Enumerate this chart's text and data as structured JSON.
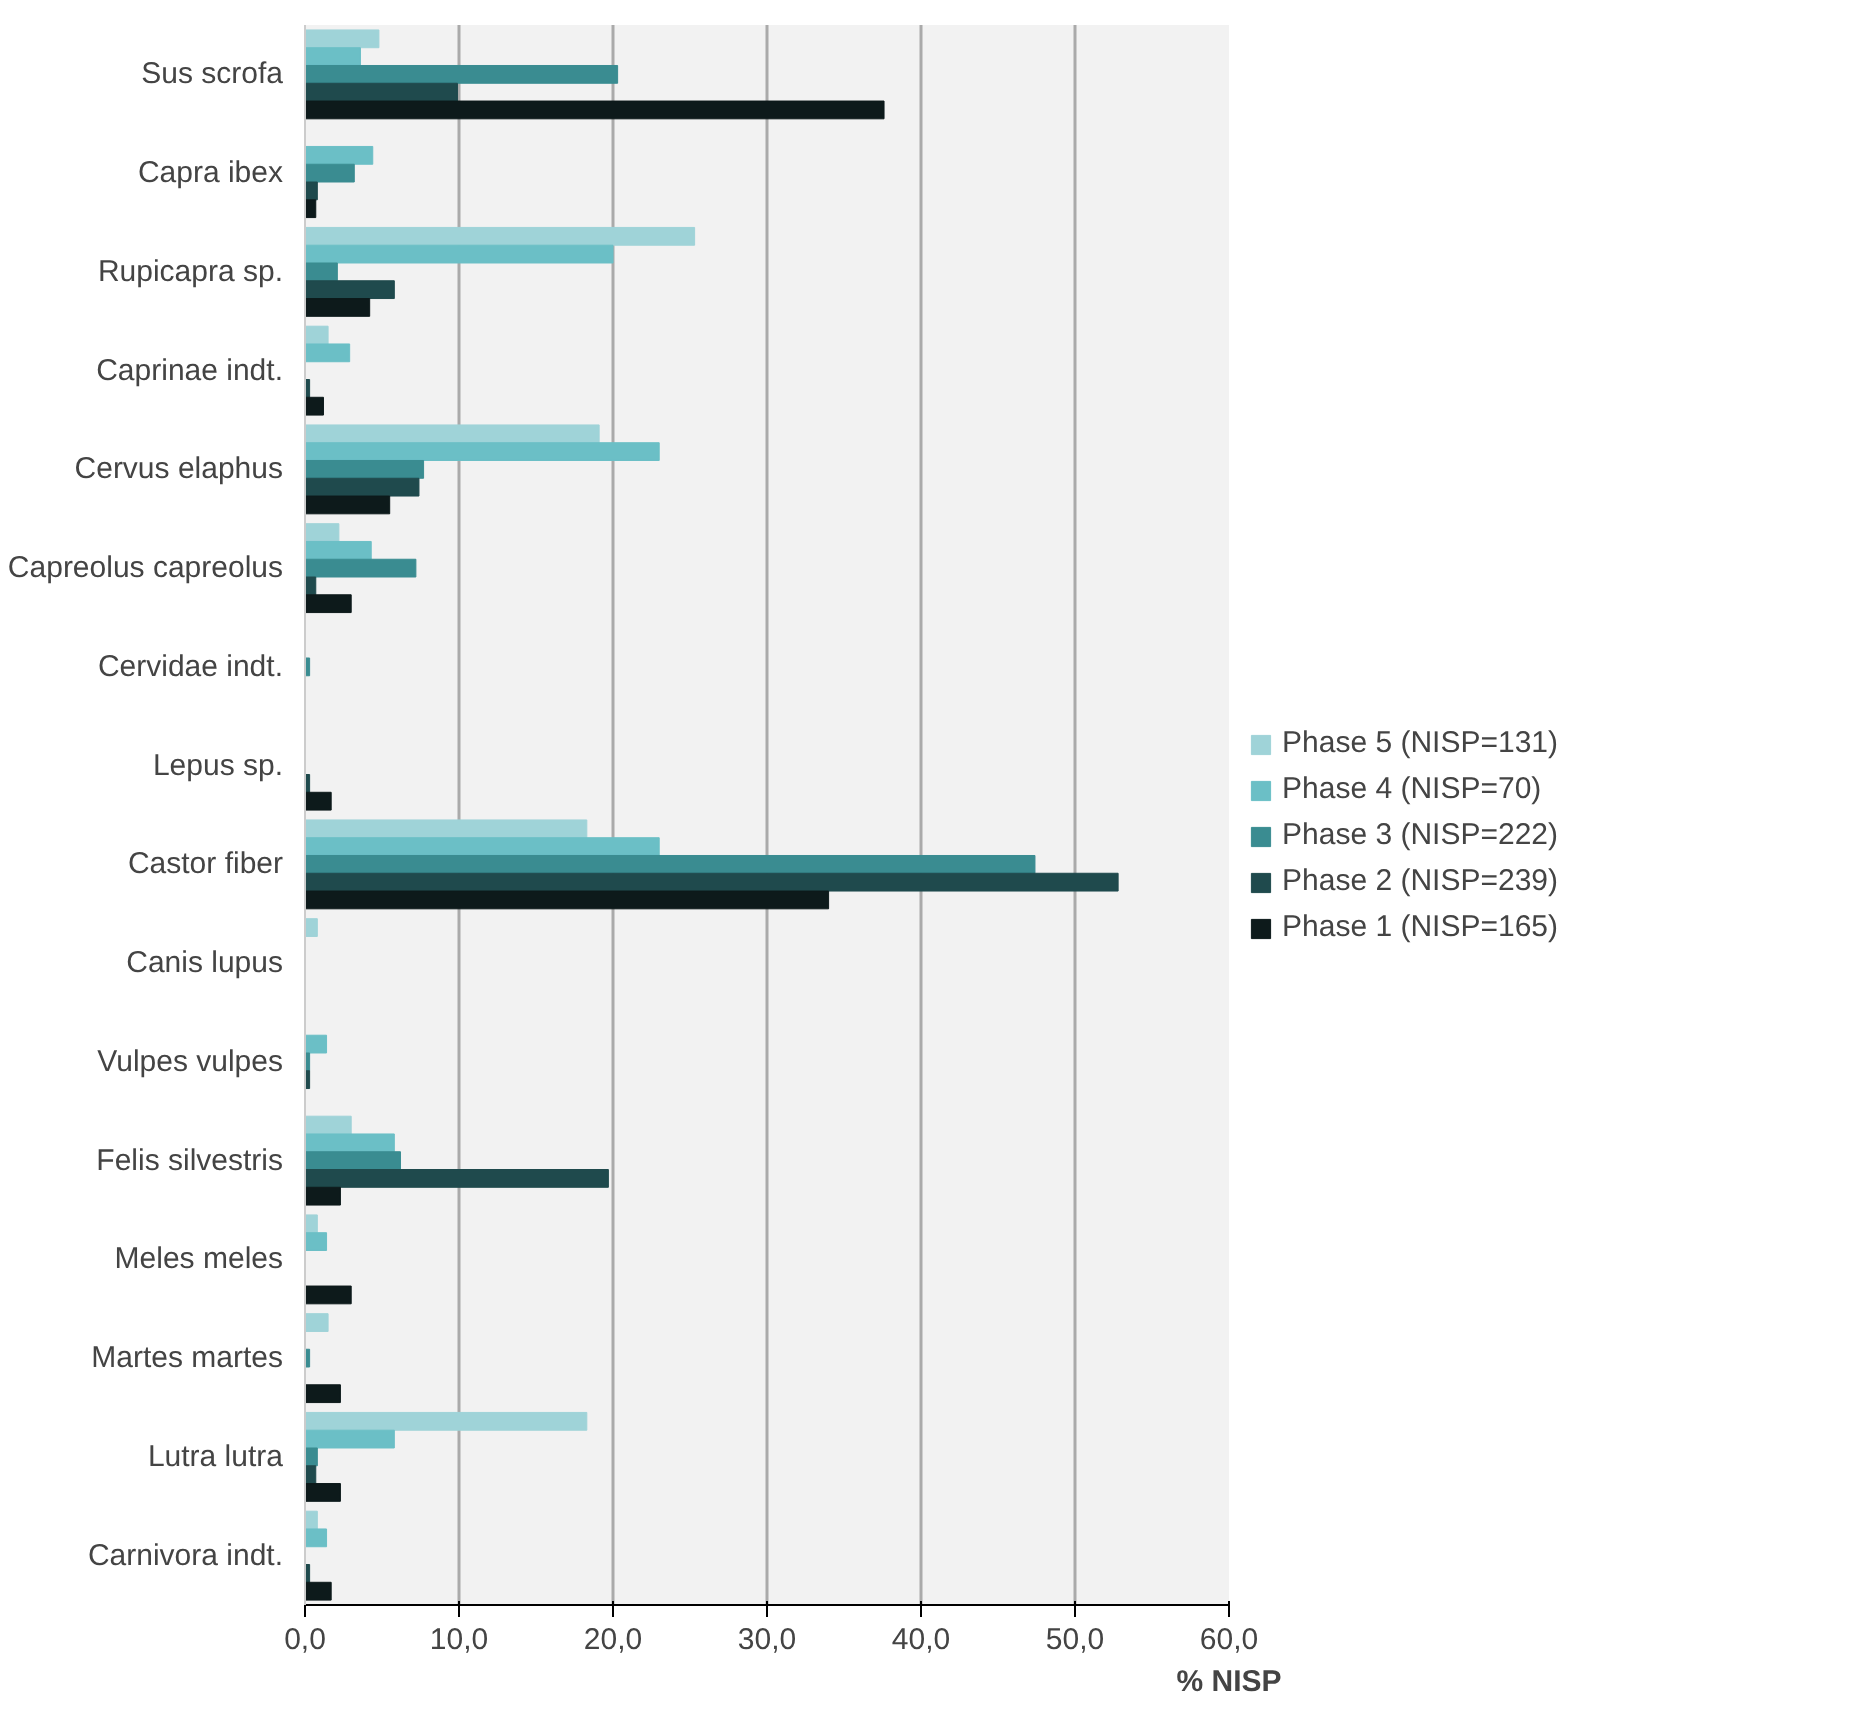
{
  "chart_data": {
    "type": "bar",
    "orientation": "horizontal",
    "xlabel": "% NISP",
    "categories": [
      "Sus scrofa",
      "Capra ibex",
      "Rupicapra sp.",
      "Caprinae indt.",
      "Cervus elaphus",
      "Capreolus capreolus",
      "Cervidae indt.",
      "Lepus sp.",
      "Castor fiber",
      "Canis lupus",
      "Vulpes vulpes",
      "Felis silvestris",
      "Meles meles",
      "Martes martes",
      "Lutra lutra",
      "Carnivora indt."
    ],
    "series": [
      {
        "name": "Phase 5 (NISP=131)",
        "color": "#9fd3d8",
        "values": [
          4.8,
          0,
          25.3,
          1.5,
          19.1,
          2.2,
          0,
          0,
          18.3,
          0.8,
          0,
          3.0,
          0.8,
          1.5,
          18.3,
          0.8
        ]
      },
      {
        "name": "Phase 4 (NISP=70)",
        "color": "#6bbfc6",
        "values": [
          3.6,
          4.4,
          20.0,
          2.9,
          23.0,
          4.3,
          0,
          0,
          23.0,
          0,
          1.4,
          5.8,
          1.4,
          0,
          5.8,
          1.4
        ]
      },
      {
        "name": "Phase 3 (NISP=222)",
        "color": "#3a8c91",
        "values": [
          20.3,
          3.2,
          2.1,
          0,
          7.7,
          7.2,
          0.3,
          0,
          47.4,
          0,
          0.3,
          6.2,
          0,
          0.3,
          0.8,
          0
        ]
      },
      {
        "name": "Phase 2 (NISP=239)",
        "color": "#1f4a4d",
        "values": [
          9.9,
          0.8,
          5.8,
          0.3,
          7.4,
          0.7,
          0,
          0.3,
          52.8,
          0,
          0.3,
          19.7,
          0,
          0,
          0.7,
          0.3
        ]
      },
      {
        "name": "Phase 1 (NISP=165)",
        "color": "#0d1a1b",
        "values": [
          37.6,
          0.7,
          4.2,
          1.2,
          5.5,
          3.0,
          0,
          1.7,
          34.0,
          0,
          0,
          2.3,
          3.0,
          2.3,
          2.3,
          1.7
        ]
      }
    ],
    "xlim": [
      0,
      60
    ],
    "xticks": [
      {
        "value": 0,
        "label": "0,0"
      },
      {
        "value": 10,
        "label": "10,0"
      },
      {
        "value": 20,
        "label": "20,0"
      },
      {
        "value": 30,
        "label": "30,0"
      },
      {
        "value": 40,
        "label": "40,0"
      },
      {
        "value": 50,
        "label": "50,0"
      },
      {
        "value": 60,
        "label": "60,0"
      }
    ],
    "grid": "x",
    "legend": "right"
  }
}
